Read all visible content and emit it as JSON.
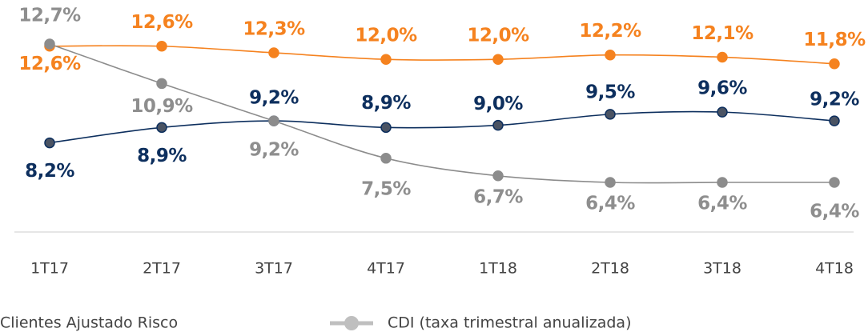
{
  "chart_data": {
    "type": "line",
    "categories": [
      "1T17",
      "2T17",
      "3T17",
      "4T17",
      "1T18",
      "2T18",
      "3T18",
      "4T18"
    ],
    "series": [
      {
        "color": "#f5821f",
        "values": [
          12.6,
          12.6,
          12.3,
          12.0,
          12.0,
          12.2,
          12.1,
          11.8
        ],
        "value_labels": [
          "12,6%",
          "12,6%",
          "12,3%",
          "12,0%",
          "12,0%",
          "12,2%",
          "12,1%",
          "11,8%"
        ]
      },
      {
        "name": "Clientes Ajustado Risco",
        "color": "#0d2f5e",
        "values": [
          8.2,
          8.9,
          9.2,
          8.9,
          9.0,
          9.5,
          9.6,
          9.2
        ],
        "value_labels": [
          "8,2%",
          "8,9%",
          "9,2%",
          "8,9%",
          "9,0%",
          "9,5%",
          "9,6%",
          "9,2%"
        ]
      },
      {
        "name": "CDI (taxa trimestral anualizada)",
        "color": "#8c8c8c",
        "values": [
          12.7,
          10.9,
          9.2,
          7.5,
          6.7,
          6.4,
          6.4,
          6.4
        ],
        "value_labels": [
          "12,7%",
          "10,9%",
          "9,2%",
          "7,5%",
          "6,7%",
          "6,4%",
          "6,4%",
          "6,4%"
        ]
      }
    ]
  }
}
